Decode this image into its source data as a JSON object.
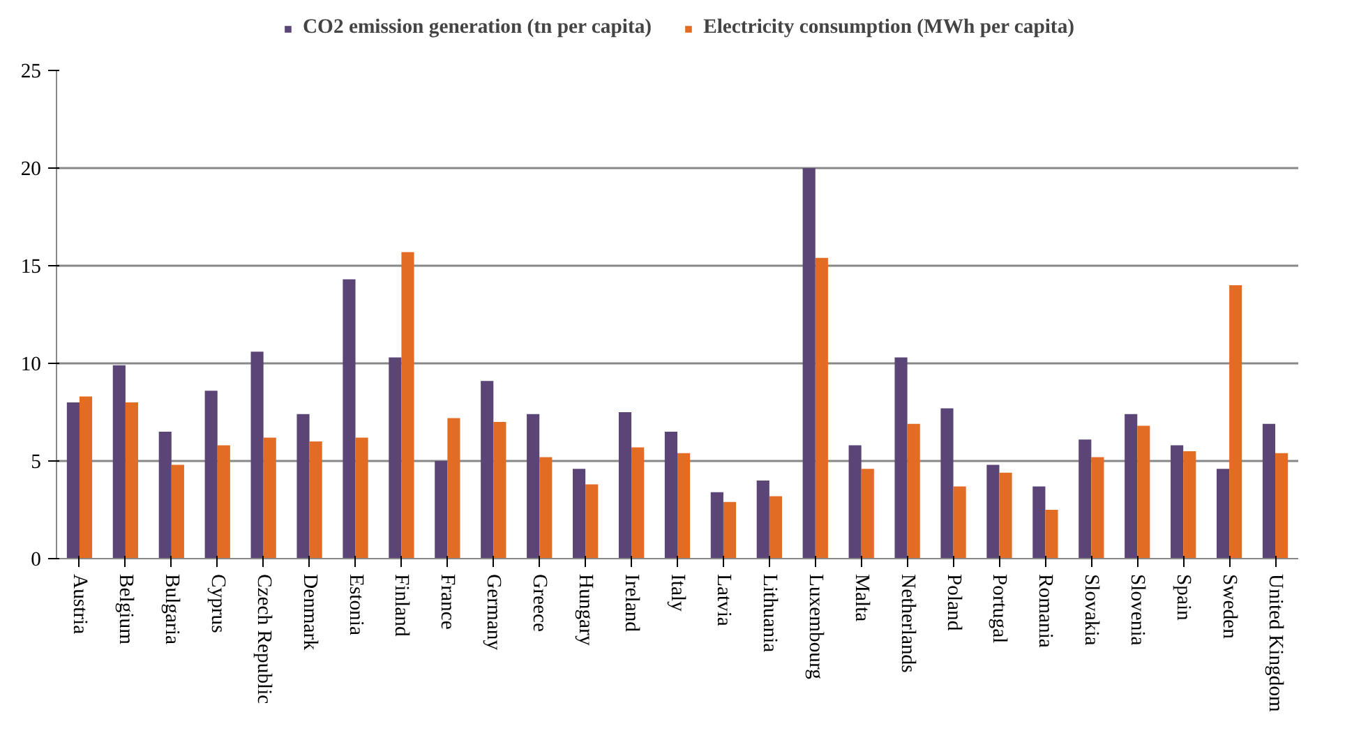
{
  "chart_data": {
    "type": "bar",
    "categories": [
      "Austria",
      "Belgium",
      "Bulgaria",
      "Cyprus",
      "Czech Republic",
      "Denmark",
      "Estonia",
      "Finland",
      "France",
      "Germany",
      "Greece",
      "Hungary",
      "Ireland",
      "Italy",
      "Latvia",
      "Lithuania",
      "Luxembourg",
      "Malta",
      "Netherlands",
      "Poland",
      "Portugal",
      "Romania",
      "Slovakia",
      "Slovenia",
      "Spain",
      "Sweden",
      "United Kingdom"
    ],
    "series": [
      {
        "name": "CO2 emission generation (tn per capita)",
        "color": "#5b4476",
        "values": [
          8.0,
          9.9,
          6.5,
          8.6,
          10.6,
          7.4,
          14.3,
          10.3,
          5.0,
          9.1,
          7.4,
          4.6,
          7.5,
          6.5,
          3.4,
          4.0,
          20.0,
          5.8,
          10.3,
          7.7,
          4.8,
          3.7,
          6.1,
          7.4,
          5.8,
          4.6,
          6.9
        ]
      },
      {
        "name": "Electricity consumption (MWh per capita)",
        "color": "#e36c24",
        "values": [
          8.3,
          8.0,
          4.8,
          5.8,
          6.2,
          6.0,
          6.2,
          15.7,
          7.2,
          7.0,
          5.2,
          3.8,
          5.7,
          5.4,
          2.9,
          3.2,
          15.4,
          4.6,
          6.9,
          3.7,
          4.4,
          2.5,
          5.2,
          6.8,
          5.5,
          14.0,
          5.4
        ]
      }
    ],
    "ylim": [
      0,
      25
    ],
    "yticks": [
      0,
      5,
      10,
      15,
      20,
      25
    ],
    "grid": "y",
    "legend": "top"
  }
}
